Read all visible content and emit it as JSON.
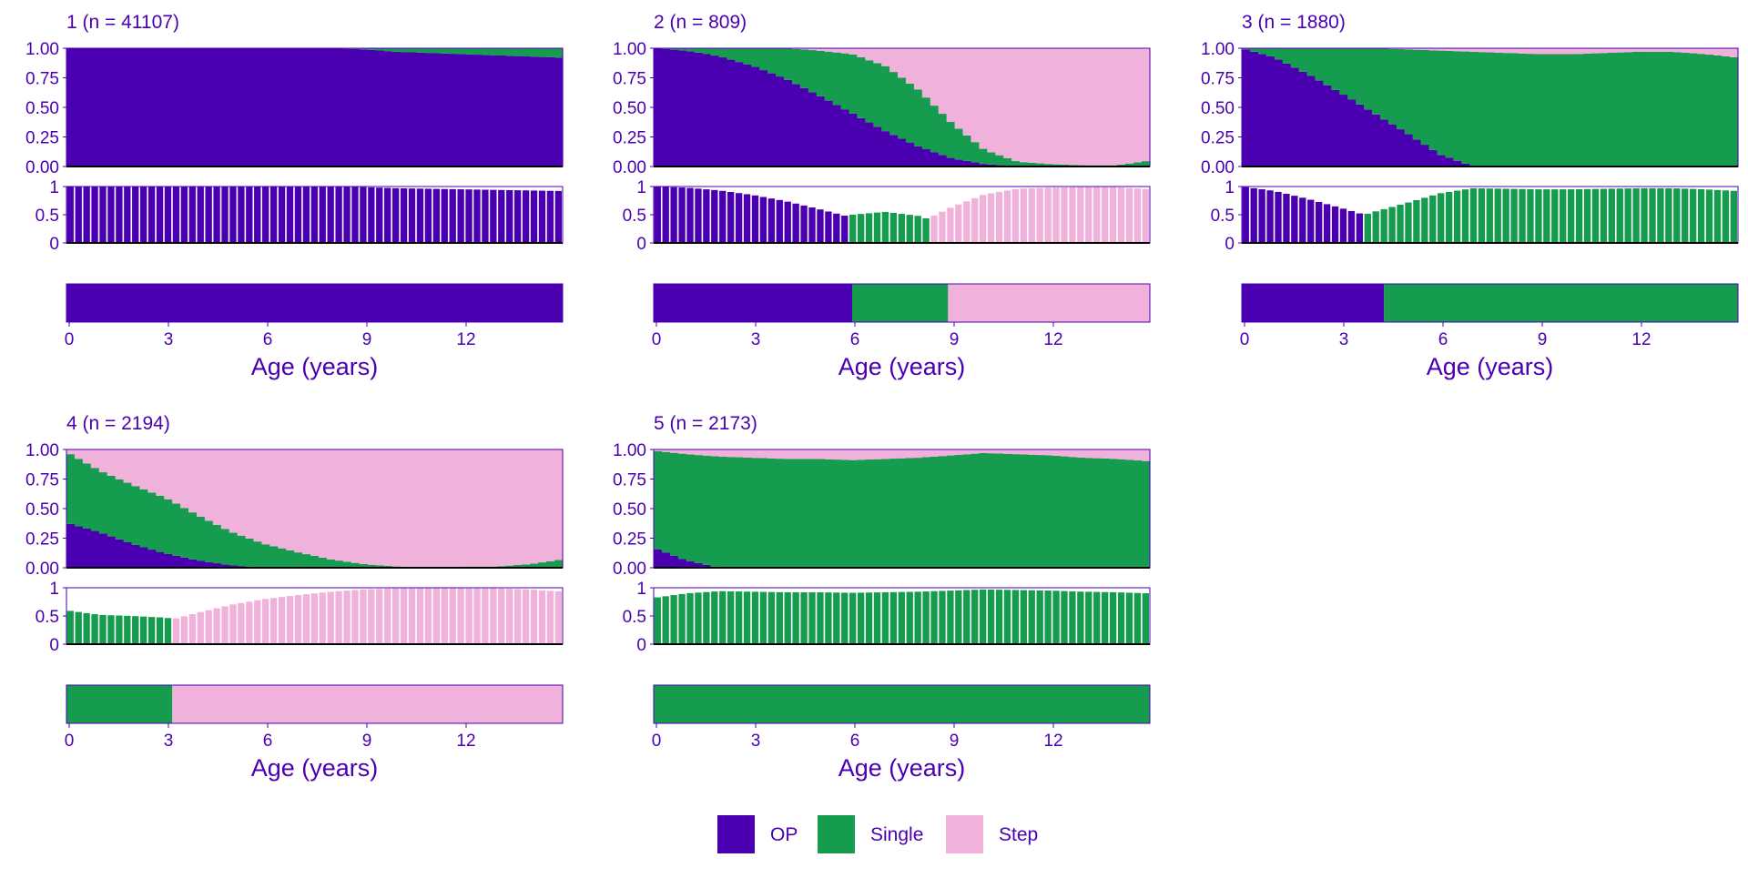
{
  "colors": {
    "OP": "#4a00b0",
    "Single": "#169c4e",
    "Step": "#f0b2da",
    "text": "#4a00b0",
    "frame": "#4a00b0",
    "axis": "#000000",
    "background": "#ffffff"
  },
  "legend": {
    "items": [
      {
        "key": "OP",
        "label": "OP"
      },
      {
        "key": "Single",
        "label": "Single"
      },
      {
        "key": "Step",
        "label": "Step"
      }
    ]
  },
  "chart_data": [
    {
      "type": "area",
      "title": "1 (n = 41107)",
      "xlabel": "Age (years)",
      "xlim": [
        0,
        15
      ],
      "xticks": [
        0,
        3,
        6,
        9,
        12
      ],
      "x_tick_labels": [
        "0",
        "3",
        "6",
        "9",
        "12"
      ],
      "top_yticks": [
        "0.00",
        "0.25",
        "0.50",
        "0.75",
        "1.00"
      ],
      "mid_yticks": [
        "0",
        "0.5",
        "1"
      ],
      "ylim": [
        0,
        1
      ],
      "proportions_stacked": true,
      "x": [
        0,
        3,
        6,
        8,
        9,
        10,
        12,
        15
      ],
      "series": [
        {
          "name": "OP",
          "values": [
            1.0,
            1.0,
            1.0,
            1.0,
            0.99,
            0.97,
            0.95,
            0.92
          ]
        },
        {
          "name": "Single",
          "values": [
            0.0,
            0.0,
            0.0,
            0.0,
            0.01,
            0.03,
            0.05,
            0.08
          ]
        },
        {
          "name": "Step",
          "values": [
            0,
            0,
            0,
            0,
            0,
            0,
            0,
            0
          ]
        }
      ],
      "modal_state_segments": [
        {
          "state": "OP",
          "from": 0,
          "to": 15
        }
      ]
    },
    {
      "type": "area",
      "title": "2 (n = 809)",
      "xlabel": "Age (years)",
      "xlim": [
        0,
        15
      ],
      "xticks": [
        0,
        3,
        6,
        9,
        12
      ],
      "x_tick_labels": [
        "0",
        "3",
        "6",
        "9",
        "12"
      ],
      "top_yticks": [
        "0.00",
        "0.25",
        "0.50",
        "0.75",
        "1.00"
      ],
      "mid_yticks": [
        "0",
        "0.5",
        "1"
      ],
      "ylim": [
        0,
        1
      ],
      "proportions_stacked": true,
      "x": [
        0,
        1,
        2,
        3,
        4,
        5,
        6,
        7,
        8,
        9,
        10,
        11,
        12,
        13,
        14,
        15
      ],
      "series": [
        {
          "name": "OP",
          "values": [
            1.0,
            0.98,
            0.93,
            0.85,
            0.74,
            0.6,
            0.45,
            0.3,
            0.17,
            0.07,
            0.02,
            0.0,
            0.0,
            0.0,
            0.0,
            0.0
          ]
        },
        {
          "name": "Single",
          "values": [
            0.0,
            0.02,
            0.07,
            0.15,
            0.26,
            0.38,
            0.5,
            0.55,
            0.48,
            0.3,
            0.12,
            0.04,
            0.02,
            0.01,
            0.01,
            0.05
          ]
        },
        {
          "name": "Step",
          "values": [
            0.0,
            0.0,
            0.0,
            0.0,
            0.0,
            0.02,
            0.05,
            0.15,
            0.35,
            0.63,
            0.86,
            0.96,
            0.98,
            0.99,
            0.99,
            0.95
          ]
        }
      ],
      "modal_state_segments": [
        {
          "state": "OP",
          "from": 0,
          "to": 6
        },
        {
          "state": "Single",
          "from": 6,
          "to": 8.9
        },
        {
          "state": "Step",
          "from": 8.9,
          "to": 15
        }
      ]
    },
    {
      "type": "area",
      "title": "3 (n = 1880)",
      "xlabel": "Age (years)",
      "xlim": [
        0,
        15
      ],
      "xticks": [
        0,
        3,
        6,
        9,
        12
      ],
      "x_tick_labels": [
        "0",
        "3",
        "6",
        "9",
        "12"
      ],
      "top_yticks": [
        "0.00",
        "0.25",
        "0.50",
        "0.75",
        "1.00"
      ],
      "mid_yticks": [
        "0",
        "0.5",
        "1"
      ],
      "ylim": [
        0,
        1
      ],
      "proportions_stacked": true,
      "x": [
        0,
        1,
        2,
        3,
        4,
        5,
        6,
        7,
        8,
        9,
        10,
        11,
        12,
        13,
        14,
        15
      ],
      "series": [
        {
          "name": "OP",
          "values": [
            1.0,
            0.92,
            0.78,
            0.62,
            0.45,
            0.28,
            0.1,
            0.0,
            0.0,
            0.0,
            0.0,
            0.0,
            0.0,
            0.0,
            0.0,
            0.0
          ]
        },
        {
          "name": "Single",
          "values": [
            0.0,
            0.08,
            0.22,
            0.38,
            0.55,
            0.71,
            0.88,
            0.97,
            0.96,
            0.95,
            0.95,
            0.96,
            0.97,
            0.97,
            0.95,
            0.92
          ]
        },
        {
          "name": "Step",
          "values": [
            0.0,
            0.0,
            0.0,
            0.0,
            0.0,
            0.01,
            0.02,
            0.03,
            0.04,
            0.05,
            0.05,
            0.04,
            0.03,
            0.03,
            0.05,
            0.08
          ]
        }
      ],
      "modal_state_segments": [
        {
          "state": "OP",
          "from": 0,
          "to": 4.3
        },
        {
          "state": "Single",
          "from": 4.3,
          "to": 15
        }
      ]
    },
    {
      "type": "area",
      "title": "4 (n = 2194)",
      "xlabel": "Age (years)",
      "xlim": [
        0,
        15
      ],
      "xticks": [
        0,
        3,
        6,
        9,
        12
      ],
      "x_tick_labels": [
        "0",
        "3",
        "6",
        "9",
        "12"
      ],
      "top_yticks": [
        "0.00",
        "0.25",
        "0.50",
        "0.75",
        "1.00"
      ],
      "mid_yticks": [
        "0",
        "0.5",
        "1"
      ],
      "ylim": [
        0,
        1
      ],
      "proportions_stacked": true,
      "x": [
        0,
        1,
        2,
        3,
        4,
        5,
        6,
        7,
        8,
        9,
        10,
        11,
        12,
        13,
        14,
        15
      ],
      "series": [
        {
          "name": "OP",
          "values": [
            0.38,
            0.3,
            0.2,
            0.12,
            0.06,
            0.02,
            0.0,
            0.0,
            0.0,
            0.0,
            0.0,
            0.0,
            0.0,
            0.0,
            0.0,
            0.0
          ]
        },
        {
          "name": "Single",
          "values": [
            0.6,
            0.52,
            0.5,
            0.47,
            0.38,
            0.28,
            0.2,
            0.13,
            0.07,
            0.03,
            0.01,
            0.0,
            0.01,
            0.01,
            0.03,
            0.07
          ]
        },
        {
          "name": "Step",
          "values": [
            0.02,
            0.18,
            0.3,
            0.41,
            0.56,
            0.7,
            0.8,
            0.87,
            0.93,
            0.97,
            0.99,
            1.0,
            0.99,
            0.99,
            0.97,
            0.93
          ]
        }
      ],
      "modal_state_segments": [
        {
          "state": "Single",
          "from": 0,
          "to": 3.2
        },
        {
          "state": "Step",
          "from": 3.2,
          "to": 15
        }
      ]
    },
    {
      "type": "area",
      "title": "5 (n = 2173)",
      "xlabel": "Age (years)",
      "xlim": [
        0,
        15
      ],
      "xticks": [
        0,
        3,
        6,
        9,
        12
      ],
      "x_tick_labels": [
        "0",
        "3",
        "6",
        "9",
        "12"
      ],
      "top_yticks": [
        "0.00",
        "0.25",
        "0.50",
        "0.75",
        "1.00"
      ],
      "mid_yticks": [
        "0",
        "0.5",
        "1"
      ],
      "ylim": [
        0,
        1
      ],
      "proportions_stacked": true,
      "x": [
        0,
        1,
        2,
        3,
        4,
        5,
        6,
        7,
        8,
        9,
        10,
        11,
        12,
        13,
        14,
        15
      ],
      "series": [
        {
          "name": "OP",
          "values": [
            0.17,
            0.06,
            0.0,
            0.0,
            0.0,
            0.0,
            0.0,
            0.0,
            0.0,
            0.0,
            0.0,
            0.0,
            0.0,
            0.0,
            0.0,
            0.0
          ]
        },
        {
          "name": "Single",
          "values": [
            0.82,
            0.9,
            0.94,
            0.93,
            0.92,
            0.92,
            0.91,
            0.92,
            0.93,
            0.95,
            0.97,
            0.96,
            0.95,
            0.93,
            0.92,
            0.9
          ]
        },
        {
          "name": "Step",
          "values": [
            0.01,
            0.04,
            0.06,
            0.07,
            0.08,
            0.08,
            0.09,
            0.08,
            0.07,
            0.05,
            0.03,
            0.04,
            0.05,
            0.07,
            0.08,
            0.1
          ]
        }
      ],
      "modal_state_segments": [
        {
          "state": "Single",
          "from": 0,
          "to": 15
        }
      ]
    }
  ]
}
